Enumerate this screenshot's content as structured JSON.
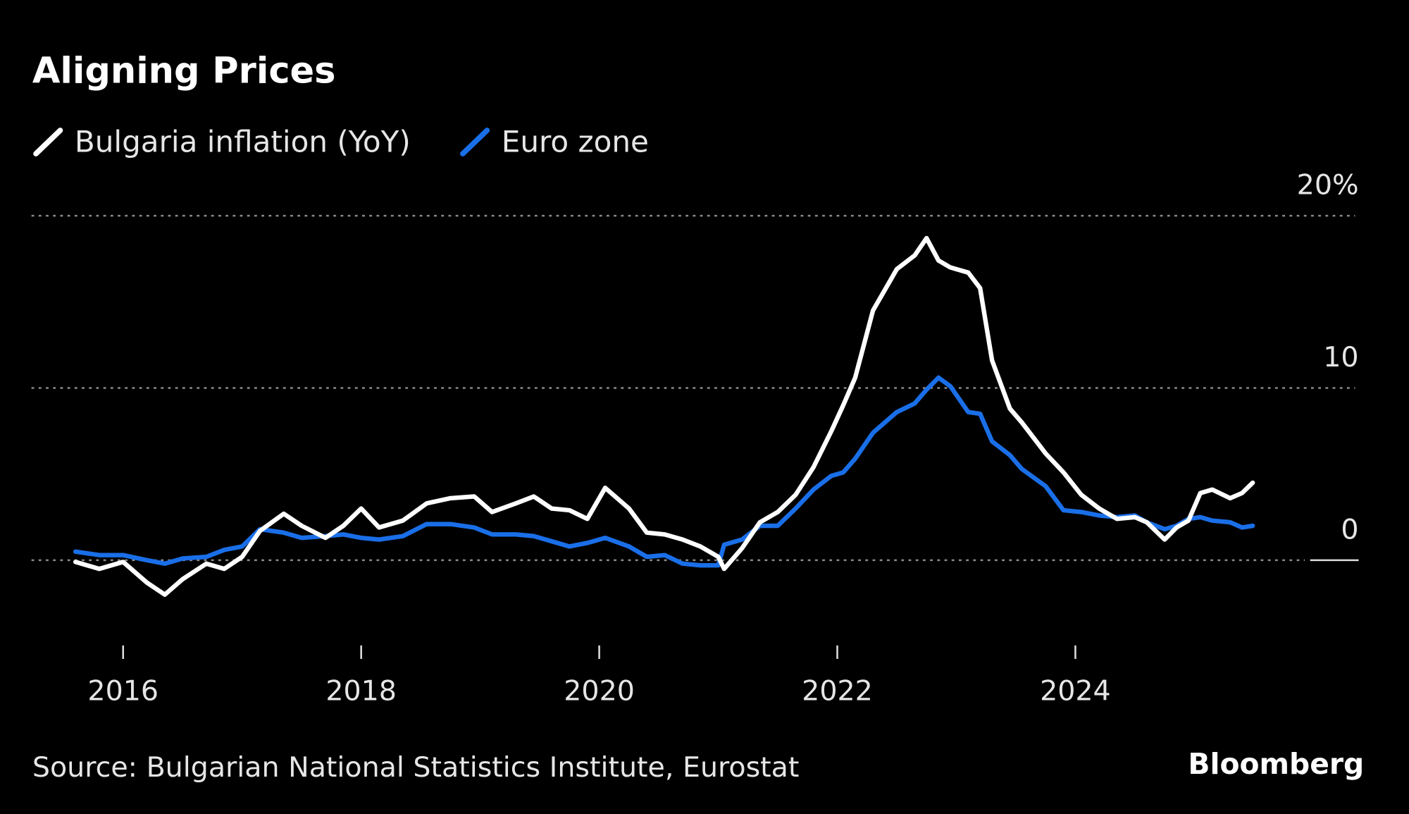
{
  "chart_data": {
    "type": "line",
    "title": "Aligning Prices",
    "source": "Source: Bulgarian National Statistics Institute, Eurostat",
    "brand": "Bloomberg",
    "x": [
      2015.6,
      2015.8,
      2016.0,
      2016.2,
      2016.35,
      2016.5,
      2016.7,
      2016.85,
      2017.0,
      2017.15,
      2017.35,
      2017.5,
      2017.7,
      2017.85,
      2018.0,
      2018.15,
      2018.35,
      2018.55,
      2018.75,
      2018.95,
      2019.1,
      2019.3,
      2019.45,
      2019.6,
      2019.75,
      2019.9,
      2020.05,
      2020.25,
      2020.4,
      2020.55,
      2020.7,
      2020.85,
      2021.0,
      2021.05,
      2021.2,
      2021.35,
      2021.5,
      2021.65,
      2021.8,
      2021.95,
      2022.05,
      2022.15,
      2022.3,
      2022.5,
      2022.65,
      2022.75,
      2022.85,
      2022.95,
      2023.1,
      2023.2,
      2023.3,
      2023.45,
      2023.55,
      2023.75,
      2023.9,
      2024.05,
      2024.2,
      2024.35,
      2024.5,
      2024.6,
      2024.75,
      2024.85,
      2024.95,
      2025.05,
      2025.15,
      2025.3,
      2025.4,
      2025.49
    ],
    "series": [
      {
        "name": "Bulgaria inflation (YoY)",
        "color": "#ffffff",
        "values": [
          -0.1,
          -0.5,
          -0.1,
          -1.3,
          -2.0,
          -1.1,
          -0.2,
          -0.5,
          0.2,
          1.7,
          2.7,
          2.0,
          1.3,
          2.0,
          3.0,
          1.9,
          2.3,
          3.3,
          3.6,
          3.7,
          2.8,
          3.3,
          3.7,
          3.0,
          2.9,
          2.4,
          4.2,
          3.0,
          1.6,
          1.5,
          1.2,
          0.8,
          0.2,
          -0.5,
          0.7,
          2.2,
          2.8,
          3.8,
          5.4,
          7.5,
          9.0,
          10.6,
          14.5,
          16.9,
          17.7,
          18.7,
          17.4,
          17.0,
          16.7,
          15.8,
          11.6,
          8.8,
          8.0,
          6.2,
          5.1,
          3.8,
          3.0,
          2.4,
          2.5,
          2.2,
          1.2,
          1.9,
          2.3,
          3.9,
          4.1,
          3.6,
          3.9,
          4.5
        ]
      },
      {
        "name": "Euro zone",
        "color": "#1a6fe8",
        "values": [
          0.5,
          0.3,
          0.3,
          0.0,
          -0.2,
          0.1,
          0.2,
          0.6,
          0.8,
          1.8,
          1.6,
          1.3,
          1.4,
          1.5,
          1.3,
          1.2,
          1.4,
          2.1,
          2.1,
          1.9,
          1.5,
          1.5,
          1.4,
          1.1,
          0.8,
          1.0,
          1.3,
          0.8,
          0.2,
          0.3,
          -0.2,
          -0.3,
          -0.3,
          0.9,
          1.2,
          2.0,
          2.0,
          3.0,
          4.1,
          4.9,
          5.1,
          5.9,
          7.4,
          8.6,
          9.1,
          9.9,
          10.6,
          10.1,
          8.6,
          8.5,
          6.9,
          6.1,
          5.3,
          4.3,
          2.9,
          2.8,
          2.6,
          2.5,
          2.6,
          2.2,
          1.8,
          2.0,
          2.4,
          2.5,
          2.3,
          2.2,
          1.9,
          2.0
        ]
      }
    ],
    "xlim": [
      2015.23,
      2026.35
    ],
    "xticks": [
      2016,
      2018,
      2020,
      2022,
      2024
    ],
    "ylim": [
      -5,
      20
    ],
    "yticks": [
      0,
      10,
      {
        "value": 20,
        "label": "20%"
      }
    ],
    "grid": true
  }
}
